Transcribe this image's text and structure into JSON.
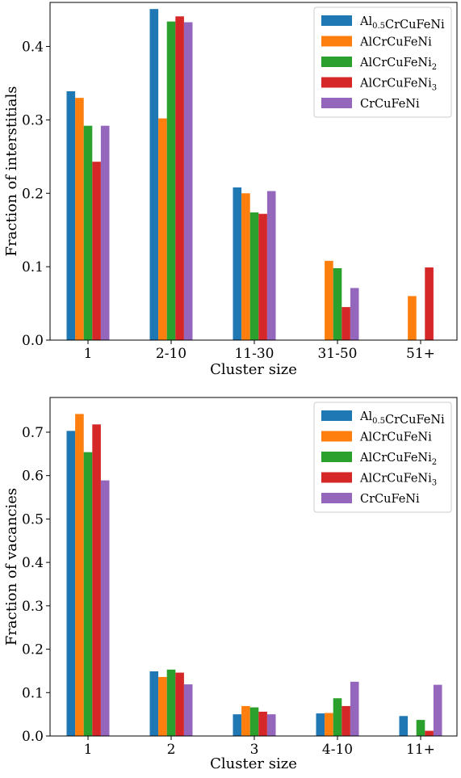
{
  "chart_data": [
    {
      "type": "bar",
      "xlabel": "Cluster size",
      "ylabel": "Fraction of interstitials",
      "categories": [
        "1",
        "2-10",
        "11-30",
        "31-50",
        "51+"
      ],
      "ylim": [
        0,
        0.46
      ],
      "yticks": [
        "0.0",
        "0.1",
        "0.2",
        "0.3",
        "0.4"
      ],
      "grid": false,
      "legend_position": "top-right",
      "series": [
        {
          "name": "Al0.5CrCuFeNi",
          "color": "#1f77b4",
          "values": [
            0.339,
            0.451,
            0.208,
            0.0,
            0.0
          ]
        },
        {
          "name": "AlCrCuFeNi",
          "color": "#ff7f0e",
          "values": [
            0.33,
            0.302,
            0.2,
            0.108,
            0.06
          ]
        },
        {
          "name": "AlCrCuFeNi2",
          "color": "#2ca02c",
          "values": [
            0.292,
            0.434,
            0.174,
            0.098,
            0.0
          ]
        },
        {
          "name": "AlCrCuFeNi3",
          "color": "#d62728",
          "values": [
            0.243,
            0.441,
            0.172,
            0.045,
            0.099
          ]
        },
        {
          "name": "CrCuFeNi",
          "color": "#9467bd",
          "values": [
            0.292,
            0.433,
            0.203,
            0.071,
            0.0
          ]
        }
      ]
    },
    {
      "type": "bar",
      "xlabel": "Cluster size",
      "ylabel": "Fraction of vacancies",
      "categories": [
        "1",
        "2",
        "3",
        "4-10",
        "11+"
      ],
      "ylim": [
        0,
        0.78
      ],
      "yticks": [
        "0.0",
        "0.1",
        "0.2",
        "0.3",
        "0.4",
        "0.5",
        "0.6",
        "0.7"
      ],
      "grid": false,
      "legend_position": "top-right",
      "series": [
        {
          "name": "Al0.5CrCuFeNi",
          "color": "#1f77b4",
          "values": [
            0.703,
            0.149,
            0.05,
            0.052,
            0.046
          ]
        },
        {
          "name": "AlCrCuFeNi",
          "color": "#ff7f0e",
          "values": [
            0.742,
            0.136,
            0.069,
            0.053,
            0.0
          ]
        },
        {
          "name": "AlCrCuFeNi2",
          "color": "#2ca02c",
          "values": [
            0.654,
            0.153,
            0.066,
            0.087,
            0.037
          ]
        },
        {
          "name": "AlCrCuFeNi3",
          "color": "#d62728",
          "values": [
            0.718,
            0.146,
            0.056,
            0.069,
            0.012
          ]
        },
        {
          "name": "CrCuFeNi",
          "color": "#9467bd",
          "values": [
            0.589,
            0.119,
            0.05,
            0.125,
            0.118
          ]
        }
      ]
    }
  ]
}
